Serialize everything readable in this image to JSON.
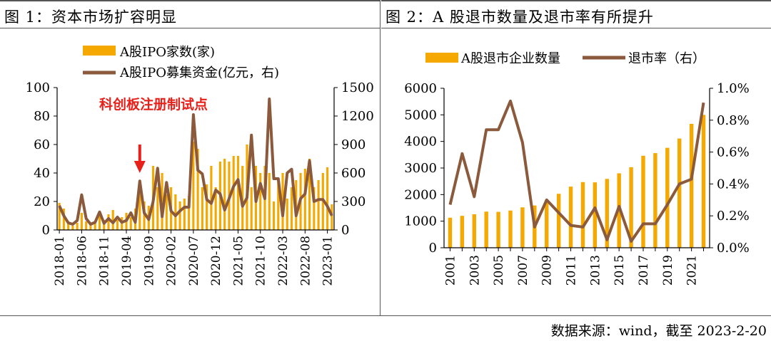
{
  "titles": {
    "chart1": "图 1：资本市场扩容明显",
    "chart2": "图 2：A 股退市数量及退市率有所提升"
  },
  "source": "数据来源：wind，截至 2023-2-20",
  "colors": {
    "bar": "#F5A800",
    "line": "#8B5A3C",
    "annotation": "#E8201A",
    "axis": "#000000"
  },
  "chart_data": [
    {
      "type": "bar+line",
      "title": "图 1：资本市场扩容明显",
      "legend": [
        "A股IPO家数(家)",
        "A股IPO募集资金(亿元，右)"
      ],
      "annotation": "科创板注册制试点",
      "annotation_index": 18,
      "x_tick_labels": [
        "2018-01",
        "2018-06",
        "2018-11",
        "2019-04",
        "2019-09",
        "2020-02",
        "2020-07",
        "2020-12",
        "2021-05",
        "2021-10",
        "2022-03",
        "2022-08",
        "2023-01"
      ],
      "x_tick_positions": [
        0,
        5,
        10,
        15,
        20,
        25,
        30,
        35,
        40,
        45,
        50,
        55,
        60
      ],
      "n_points": 62,
      "y_left": {
        "range": [
          0,
          100
        ],
        "ticks": [
          0,
          20,
          40,
          60,
          80,
          100
        ]
      },
      "y_right": {
        "range": [
          0,
          1500
        ],
        "ticks": [
          0,
          300,
          600,
          900,
          1200,
          1500
        ]
      },
      "series": [
        {
          "name": "A股IPO家数(家)",
          "axis": "left",
          "kind": "bar",
          "values": [
            19,
            15,
            6,
            3,
            5,
            12,
            6,
            4,
            5,
            11,
            7,
            11,
            14,
            7,
            9,
            12,
            9,
            15,
            34,
            20,
            17,
            45,
            30,
            40,
            25,
            30,
            25,
            20,
            22,
            24,
            62,
            57,
            30,
            32,
            45,
            30,
            48,
            50,
            48,
            52,
            52,
            45,
            60,
            30,
            45,
            40,
            45,
            40,
            20,
            35,
            40,
            22,
            30,
            35,
            40,
            43,
            50,
            30,
            35,
            40,
            44,
            18
          ],
          "note": "Monthly A-share IPO counts, Jan 2018 – Feb 2023, estimated from the bar heights."
        },
        {
          "name": "A股IPO募集资金(亿元，右)",
          "axis": "right",
          "kind": "line",
          "values": [
            255,
            150,
            75,
            60,
            100,
            370,
            120,
            60,
            80,
            190,
            70,
            120,
            75,
            135,
            80,
            100,
            180,
            80,
            515,
            180,
            110,
            300,
            650,
            140,
            500,
            200,
            150,
            200,
            240,
            240,
            1215,
            630,
            590,
            320,
            280,
            420,
            380,
            210,
            330,
            460,
            530,
            250,
            340,
            1000,
            300,
            490,
            330,
            1380,
            540,
            540,
            150,
            600,
            640,
            150,
            330,
            380,
            730,
            300,
            320,
            320,
            250,
            150
          ],
          "note": "Monthly IPO proceeds in 100 million yuan, estimated from the line."
        }
      ]
    },
    {
      "type": "bar+line",
      "title": "图 2：A 股退市数量及退市率有所提升",
      "legend": [
        "A股退市企业数量",
        "退市率（右）"
      ],
      "x_tick_labels": [
        "2001",
        "2003",
        "2005",
        "2007",
        "2009",
        "2011",
        "2013",
        "2015",
        "2017",
        "2019",
        "2021"
      ],
      "categories": [
        "2001",
        "2002",
        "2003",
        "2004",
        "2005",
        "2006",
        "2007",
        "2008",
        "2009",
        "2010",
        "2011",
        "2012",
        "2013",
        "2014",
        "2015",
        "2016",
        "2017",
        "2018",
        "2019",
        "2020",
        "2021",
        "2022"
      ],
      "y_left": {
        "range": [
          0,
          6000
        ],
        "ticks": [
          0,
          1000,
          2000,
          3000,
          4000,
          5000,
          6000
        ]
      },
      "y_right": {
        "range": [
          0,
          1.0
        ],
        "ticks": [
          "0.0%",
          "0.2%",
          "0.4%",
          "0.6%",
          "0.8%",
          "1.0%"
        ]
      },
      "series": [
        {
          "name": "A股退市企业数量",
          "axis": "left",
          "kind": "bar",
          "values": [
            1130,
            1200,
            1260,
            1360,
            1350,
            1400,
            1520,
            1590,
            1700,
            2030,
            2300,
            2470,
            2460,
            2590,
            2800,
            3030,
            3460,
            3560,
            3760,
            4110,
            4660,
            5000
          ]
        },
        {
          "name": "退市率（右）",
          "axis": "right",
          "kind": "line",
          "values": [
            0.27,
            0.59,
            0.32,
            0.74,
            0.74,
            0.92,
            0.66,
            0.13,
            0.3,
            0.22,
            0.14,
            0.13,
            0.25,
            0.05,
            0.26,
            0.04,
            0.15,
            0.15,
            0.27,
            0.4,
            0.43,
            0.91
          ]
        }
      ]
    }
  ]
}
